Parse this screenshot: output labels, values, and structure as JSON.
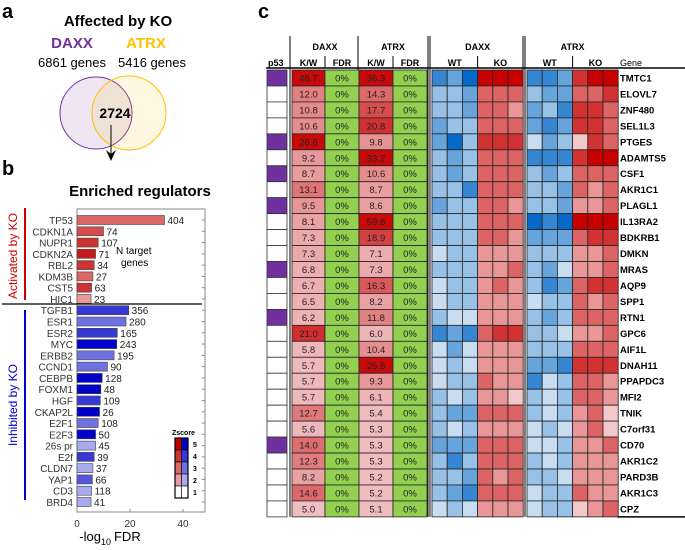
{
  "panel_labels": {
    "a": "a",
    "b": "b",
    "c": "c"
  },
  "venn": {
    "title": "Affected by KO",
    "left": {
      "name": "DAXX",
      "count": "6861 genes",
      "color": "#7030a0"
    },
    "right": {
      "name": "ATRX",
      "count": "5416 genes",
      "color": "#ffc000"
    },
    "overlap": "2724"
  },
  "chart_data": {
    "type": "bar",
    "orientation": "horizontal",
    "title": "Enriched regulators",
    "xlabel": "-log10 FDR",
    "xlabel_main": "-log",
    "xlabel_sub": "10",
    "xlabel_tail": "FDR",
    "xlim": [
      0,
      47
    ],
    "xticks": [
      "0",
      "20",
      "40"
    ],
    "annotation": [
      "N target",
      "genes"
    ],
    "groups": [
      {
        "label": "Activated by KO",
        "color": "#cc0000"
      },
      {
        "label": "Inhibited by KO",
        "color": "#0000cc"
      }
    ],
    "legend": {
      "title": "Zscore",
      "levels": [
        "5",
        "4",
        "3",
        "2",
        "1"
      ],
      "placement": "bottom-right"
    },
    "bars": [
      {
        "name": "TP53",
        "value": 33,
        "n": "404",
        "group": 0,
        "z": 3
      },
      {
        "name": "CDKN1A",
        "value": 10,
        "n": "74",
        "group": 0,
        "z": 3.5
      },
      {
        "name": "NUPR1",
        "value": 8,
        "n": "107",
        "group": 0,
        "z": 4
      },
      {
        "name": "CDKN2A",
        "value": 7,
        "n": "71",
        "group": 0,
        "z": 4.5
      },
      {
        "name": "RBL2",
        "value": 6.5,
        "n": "34",
        "group": 0,
        "z": 4
      },
      {
        "name": "KDM3B",
        "value": 6,
        "n": "27",
        "group": 0,
        "z": 3
      },
      {
        "name": "CST5",
        "value": 5.5,
        "n": "63",
        "group": 0,
        "z": 4
      },
      {
        "name": "HIC1",
        "value": 5.3,
        "n": "23",
        "group": 0,
        "z": 2
      },
      {
        "name": "TGFB1",
        "value": 19.5,
        "n": "356",
        "group": 1,
        "z": 4
      },
      {
        "name": "ESR1",
        "value": 18.5,
        "n": "280",
        "group": 1,
        "z": 3
      },
      {
        "name": "ESR2",
        "value": 15.2,
        "n": "165",
        "group": 1,
        "z": 4
      },
      {
        "name": "MYC",
        "value": 15,
        "n": "243",
        "group": 1,
        "z": 5
      },
      {
        "name": "ERBB2",
        "value": 14,
        "n": "195",
        "group": 1,
        "z": 3
      },
      {
        "name": "CCND1",
        "value": 11.5,
        "n": "90",
        "group": 1,
        "z": 3
      },
      {
        "name": "CEBPB",
        "value": 9.5,
        "n": "128",
        "group": 1,
        "z": 5
      },
      {
        "name": "FOXM1",
        "value": 9,
        "n": "48",
        "group": 1,
        "z": 5
      },
      {
        "name": "HGF",
        "value": 8.8,
        "n": "109",
        "group": 1,
        "z": 4
      },
      {
        "name": "CKAP2L",
        "value": 8.5,
        "n": "26",
        "group": 1,
        "z": 5
      },
      {
        "name": "E2F1",
        "value": 8,
        "n": "108",
        "group": 1,
        "z": 3
      },
      {
        "name": "E2F3",
        "value": 7,
        "n": "50",
        "group": 1,
        "z": 5
      },
      {
        "name": "26s pr",
        "value": 7,
        "n": "45",
        "group": 1,
        "z": 2
      },
      {
        "name": "E2f",
        "value": 6.5,
        "n": "39",
        "group": 1,
        "z": 4
      },
      {
        "name": "CLDN7",
        "value": 6,
        "n": "37",
        "group": 1,
        "z": 2
      },
      {
        "name": "YAP1",
        "value": 5.8,
        "n": "66",
        "group": 1,
        "z": 3.5
      },
      {
        "name": "CD3",
        "value": 5.5,
        "n": "118",
        "group": 1,
        "z": 2
      },
      {
        "name": "BRD4",
        "value": 5.3,
        "n": "41",
        "group": 1,
        "z": 2
      }
    ]
  },
  "table": {
    "p53_header": "p53",
    "groups": [
      "DAXX",
      "ATRX"
    ],
    "columns": [
      "K/W",
      "FDR",
      "K/W",
      "FDR"
    ],
    "heatmap_groups": [
      "DAXX",
      "ATRX"
    ],
    "heatmap_subgroups": [
      "WT",
      "KO"
    ],
    "gene_header": "Gene",
    "p53_color": "#7030a0",
    "fdr_color": "#92d050",
    "rows": [
      {
        "gene": "TMTC1",
        "p53": true,
        "daxx_kw": "48.7",
        "daxx_fdr": "0%",
        "atrx_kw": "36.3",
        "atrx_fdr": "0%",
        "heat": [
          -4,
          -3,
          -5,
          5,
          5,
          5,
          -4,
          -4,
          -3,
          4,
          5,
          5
        ]
      },
      {
        "gene": "ELOVL7",
        "p53": false,
        "daxx_kw": "12.0",
        "daxx_fdr": "0%",
        "atrx_kw": "14.3",
        "atrx_fdr": "0%",
        "heat": [
          -2,
          -2,
          -3,
          3,
          3,
          3,
          -2,
          -3,
          -3,
          3,
          3,
          4
        ]
      },
      {
        "gene": "ZNF480",
        "p53": false,
        "daxx_kw": "10.8",
        "daxx_fdr": "0%",
        "atrx_kw": "17.7",
        "atrx_fdr": "0%",
        "heat": [
          -2,
          -2,
          -3,
          3,
          3,
          2,
          -3,
          -2,
          -4,
          4,
          4,
          3
        ]
      },
      {
        "gene": "SEL1L3",
        "p53": false,
        "daxx_kw": "10.6",
        "daxx_fdr": "0%",
        "atrx_kw": "20.8",
        "atrx_fdr": "0%",
        "heat": [
          -3,
          -2,
          -2,
          3,
          3,
          3,
          -3,
          -4,
          -3,
          4,
          4,
          3
        ]
      },
      {
        "gene": "PTGES",
        "p53": true,
        "daxx_kw": "26.6",
        "daxx_fdr": "0%",
        "atrx_kw": "9.8",
        "atrx_fdr": "0%",
        "heat": [
          -3,
          -5,
          -2,
          4,
          4,
          4,
          -1,
          -3,
          -2,
          1,
          4,
          3
        ]
      },
      {
        "gene": "ADAMTS5",
        "p53": false,
        "daxx_kw": "9.2",
        "daxx_fdr": "0%",
        "atrx_kw": "33.2",
        "atrx_fdr": "0%",
        "heat": [
          -2,
          -3,
          -2,
          3,
          3,
          3,
          -4,
          -4,
          -4,
          4,
          5,
          5
        ]
      },
      {
        "gene": "CSF1",
        "p53": true,
        "daxx_kw": "8.7",
        "daxx_fdr": "0%",
        "atrx_kw": "10.6",
        "atrx_fdr": "0%",
        "heat": [
          -2,
          -3,
          -2,
          3,
          3,
          3,
          -2,
          -3,
          -2,
          3,
          3,
          3
        ]
      },
      {
        "gene": "AKR1C1",
        "p53": false,
        "daxx_kw": "13.1",
        "daxx_fdr": "0%",
        "atrx_kw": "8.7",
        "atrx_fdr": "0%",
        "heat": [
          -2,
          -2,
          -4,
          3,
          3,
          3,
          -2,
          -2,
          -3,
          3,
          2,
          3
        ]
      },
      {
        "gene": "PLAGL1",
        "p53": true,
        "daxx_kw": "9.5",
        "daxx_fdr": "0%",
        "atrx_kw": "8.6",
        "atrx_fdr": "0%",
        "heat": [
          -3,
          -2,
          -2,
          3,
          3,
          2,
          -2,
          -2,
          -3,
          2,
          2,
          3
        ]
      },
      {
        "gene": "IL13RA2",
        "p53": false,
        "daxx_kw": "8.1",
        "daxx_fdr": "0%",
        "atrx_kw": "59.6",
        "atrx_fdr": "0%",
        "heat": [
          -2,
          -2,
          -2,
          3,
          3,
          3,
          -5,
          -4,
          -5,
          5,
          5,
          5
        ]
      },
      {
        "gene": "BDKRB1",
        "p53": false,
        "daxx_kw": "7.3",
        "daxx_fdr": "0%",
        "atrx_kw": "18.9",
        "atrx_fdr": "0%",
        "heat": [
          -2,
          -2,
          -2,
          3,
          3,
          2,
          -3,
          -3,
          -3,
          3,
          4,
          4
        ]
      },
      {
        "gene": "DMKN",
        "p53": false,
        "daxx_kw": "7.3",
        "daxx_fdr": "0%",
        "atrx_kw": "7.1",
        "atrx_fdr": "0%",
        "heat": [
          -1,
          -2,
          -2,
          2,
          2,
          2,
          -2,
          -2,
          -2,
          2,
          2,
          3
        ]
      },
      {
        "gene": "MRAS",
        "p53": true,
        "daxx_kw": "6.8",
        "daxx_fdr": "0%",
        "atrx_kw": "7.3",
        "atrx_fdr": "0%",
        "heat": [
          -2,
          -2,
          -2,
          2,
          2,
          3,
          -2,
          -3,
          -1,
          2,
          2,
          3
        ]
      },
      {
        "gene": "AQP9",
        "p53": false,
        "daxx_kw": "6.7",
        "daxx_fdr": "0%",
        "atrx_kw": "16.3",
        "atrx_fdr": "0%",
        "heat": [
          -1,
          -2,
          -2,
          2,
          3,
          2,
          -2,
          -4,
          -3,
          3,
          4,
          4
        ]
      },
      {
        "gene": "SPP1",
        "p53": false,
        "daxx_kw": "6.5",
        "daxx_fdr": "0%",
        "atrx_kw": "8.2",
        "atrx_fdr": "0%",
        "heat": [
          -1,
          -2,
          -2,
          2,
          2,
          2,
          -1,
          -2,
          -2,
          3,
          2,
          3
        ]
      },
      {
        "gene": "RTN1",
        "p53": true,
        "daxx_kw": "6.2",
        "daxx_fdr": "0%",
        "atrx_kw": "11.8",
        "atrx_fdr": "0%",
        "heat": [
          -2,
          -1,
          -1,
          2,
          2,
          2,
          -2,
          -3,
          -2,
          3,
          3,
          3
        ]
      },
      {
        "gene": "GPC6",
        "p53": false,
        "daxx_kw": "21.0",
        "daxx_fdr": "0%",
        "atrx_kw": "6.0",
        "atrx_fdr": "0%",
        "heat": [
          -4,
          -3,
          -4,
          3,
          4,
          4,
          -2,
          -2,
          -1,
          2,
          2,
          3
        ]
      },
      {
        "gene": "AIF1L",
        "p53": false,
        "daxx_kw": "5.8",
        "daxx_fdr": "0%",
        "atrx_kw": "10.4",
        "atrx_fdr": "0%",
        "heat": [
          -1,
          -3,
          -1,
          2,
          2,
          2,
          -2,
          -2,
          -2,
          3,
          3,
          3
        ]
      },
      {
        "gene": "DNAH11",
        "p53": false,
        "daxx_kw": "5.7",
        "daxx_fdr": "0%",
        "atrx_kw": "25.5",
        "atrx_fdr": "0%",
        "heat": [
          -1,
          -2,
          -1,
          2,
          2,
          2,
          -3,
          -3,
          -4,
          4,
          4,
          4
        ]
      },
      {
        "gene": "PPAPDC3",
        "p53": false,
        "daxx_kw": "5.7",
        "daxx_fdr": "0%",
        "atrx_kw": "9.3",
        "atrx_fdr": "0%",
        "heat": [
          -1,
          -2,
          -2,
          3,
          2,
          2,
          -4,
          -1,
          -2,
          3,
          3,
          2
        ]
      },
      {
        "gene": "MFI2",
        "p53": false,
        "daxx_kw": "5.7",
        "daxx_fdr": "0%",
        "atrx_kw": "6.1",
        "atrx_fdr": "0%",
        "heat": [
          -2,
          -1,
          -2,
          2,
          2,
          1,
          -2,
          -1,
          -2,
          3,
          3,
          2
        ]
      },
      {
        "gene": "TNIK",
        "p53": false,
        "daxx_kw": "12.7",
        "daxx_fdr": "0%",
        "atrx_kw": "5.4",
        "atrx_fdr": "0%",
        "heat": [
          -2,
          -3,
          -3,
          3,
          3,
          3,
          -2,
          -1,
          -2,
          2,
          3,
          1
        ]
      },
      {
        "gene": "C7orf31",
        "p53": false,
        "daxx_kw": "5.6",
        "daxx_fdr": "0%",
        "atrx_kw": "5.3",
        "atrx_fdr": "0%",
        "heat": [
          -2,
          -1,
          -2,
          2,
          2,
          2,
          -1,
          -2,
          -1,
          2,
          3,
          1
        ]
      },
      {
        "gene": "CD70",
        "p53": true,
        "daxx_kw": "14.0",
        "daxx_fdr": "0%",
        "atrx_kw": "5.3",
        "atrx_fdr": "0%",
        "heat": [
          -3,
          -3,
          -3,
          3,
          3,
          3,
          -1,
          -1,
          -2,
          2,
          2,
          3
        ]
      },
      {
        "gene": "AKR1C2",
        "p53": false,
        "daxx_kw": "12.3",
        "daxx_fdr": "0%",
        "atrx_kw": "5.3",
        "atrx_fdr": "0%",
        "heat": [
          -2,
          -4,
          -2,
          3,
          3,
          3,
          -2,
          -1,
          -2,
          2,
          2,
          2
        ]
      },
      {
        "gene": "PARD3B",
        "p53": false,
        "daxx_kw": "8.2",
        "daxx_fdr": "0%",
        "atrx_kw": "5.2",
        "atrx_fdr": "0%",
        "heat": [
          -2,
          -2,
          -3,
          3,
          2,
          3,
          -2,
          -2,
          -1,
          2,
          2,
          2
        ]
      },
      {
        "gene": "AKR1C3",
        "p53": false,
        "daxx_kw": "14.6",
        "daxx_fdr": "0%",
        "atrx_kw": "5.2",
        "atrx_fdr": "0%",
        "heat": [
          -2,
          -3,
          -4,
          3,
          3,
          3,
          -1,
          -2,
          -2,
          3,
          2,
          2
        ]
      },
      {
        "gene": "CPZ",
        "p53": false,
        "daxx_kw": "5.0",
        "daxx_fdr": "0%",
        "atrx_kw": "5.1",
        "atrx_fdr": "0%",
        "heat": [
          -1,
          -2,
          -1,
          2,
          2,
          2,
          -1,
          -2,
          -2,
          1,
          2,
          3
        ]
      }
    ]
  }
}
